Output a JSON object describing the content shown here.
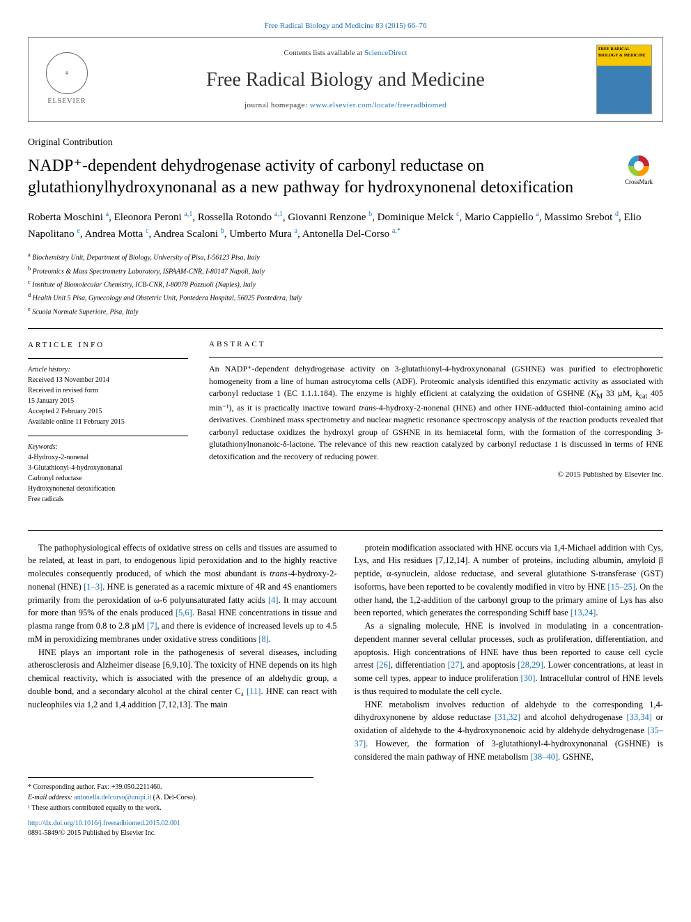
{
  "colors": {
    "link": "#1a6eb5",
    "text": "#000000",
    "border": "#888888"
  },
  "header": {
    "top_link": "Free Radical Biology and Medicine 83 (2015) 66–76",
    "contents_prefix": "Contents lists available at ",
    "contents_link": "ScienceDirect",
    "journal_name": "Free Radical Biology and Medicine",
    "homepage_prefix": "journal homepage: ",
    "homepage_url": "www.elsevier.com/locate/freeradbiomed",
    "elsevier": "ELSEVIER",
    "cover_text": "FREE RADICAL BIOLOGY & MEDICINE"
  },
  "article": {
    "type": "Original Contribution",
    "title": "NADP⁺-dependent dehydrogenase activity of carbonyl reductase on glutathionylhydroxynonanal as a new pathway for hydroxynonenal detoxification",
    "crossmark": "CrossMark"
  },
  "authors_html": "Roberta Moschini <sup>a</sup>, Eleonora Peroni <sup>a,1</sup>, Rossella Rotondo <sup>a,1</sup>, Giovanni Renzone <sup>b</sup>, Dominique Melck <sup>c</sup>, Mario Cappiello <sup>a</sup>, Massimo Srebot <sup>d</sup>, Elio Napolitano <sup>e</sup>, Andrea Motta <sup>c</sup>, Andrea Scaloni <sup>b</sup>, Umberto Mura <sup>a</sup>, Antonella Del-Corso <sup>a,*</sup>",
  "affiliations": [
    {
      "sup": "a",
      "text": "Biochemistry Unit, Department of Biology, University of Pisa, I-56123 Pisa, Italy"
    },
    {
      "sup": "b",
      "text": "Proteomics & Mass Spectrometry Laboratory, ISPAAM-CNR, I-80147 Napoli, Italy"
    },
    {
      "sup": "c",
      "text": "Institute of Biomolecular Chemistry, ICB-CNR, I-80078 Pozzuoli (Naples), Italy"
    },
    {
      "sup": "d",
      "text": "Health Unit 5 Pisa, Gynecology and Obstetric Unit, Pontedera Hospital, 56025 Pontedera, Italy"
    },
    {
      "sup": "e",
      "text": "Scuola Normale Superiore, Pisa, Italy"
    }
  ],
  "article_info": {
    "heading": "ARTICLE INFO",
    "history_label": "Article history:",
    "history": [
      "Received 13 November 2014",
      "Received in revised form",
      "15 January 2015",
      "Accepted 2 February 2015",
      "Available online 11 February 2015"
    ],
    "keywords_label": "Keywords:",
    "keywords": [
      "4-Hydroxy-2-nonenal",
      "3-Glutathionyl-4-hydroxynonanal",
      "Carbonyl reductase",
      "Hydroxynonenal detoxification",
      "Free radicals"
    ]
  },
  "abstract": {
    "heading": "ABSTRACT",
    "text": "An NADP⁺-dependent dehydrogenase activity on 3-glutathionyl-4-hydroxynonanal (GSHNE) was purified to electrophoretic homogeneity from a line of human astrocytoma cells (ADF). Proteomic analysis identified this enzymatic activity as associated with carbonyl reductase 1 (EC 1.1.1.184). The enzyme is highly efficient at catalyzing the oxidation of GSHNE (KM 33 µM, kcat 405 min⁻¹), as it is practically inactive toward trans-4-hydroxy-2-nonenal (HNE) and other HNE-adducted thiol-containing amino acid derivatives. Combined mass spectrometry and nuclear magnetic resonance spectroscopy analysis of the reaction products revealed that carbonyl reductase oxidizes the hydroxyl group of GSHNE in its hemiacetal form, with the formation of the corresponding 3-glutathionylnonanoic-δ-lactone. The relevance of this new reaction catalyzed by carbonyl reductase 1 is discussed in terms of HNE detoxification and the recovery of reducing power.",
    "copyright": "© 2015 Published by Elsevier Inc."
  },
  "body": {
    "col1": [
      "The pathophysiological effects of oxidative stress on cells and tissues are assumed to be related, at least in part, to endogenous lipid peroxidation and to the highly reactive molecules consequently produced, of which the most abundant is trans-4-hydroxy-2-nonenal (HNE) [1–3]. HNE is generated as a racemic mixture of 4R and 4S enantiomers primarily from the peroxidation of ω-6 polyunsaturated fatty acids [4]. It may account for more than 95% of the enals produced [5,6]. Basal HNE concentrations in tissue and plasma range from 0.8 to 2.8 µM [7], and there is evidence of increased levels up to 4.5 mM in peroxidizing membranes under oxidative stress conditions [8].",
      "HNE plays an important role in the pathogenesis of several diseases, including atherosclerosis and Alzheimer disease [6,9,10]. The toxicity of HNE depends on its high chemical reactivity, which is associated with the presence of an aldehydic group, a double bond, and a secondary alcohol at the chiral center C₄ [11]. HNE can react with nucleophiles via 1,2 and 1,4 addition [7,12,13]. The main"
    ],
    "col2": [
      "protein modification associated with HNE occurs via 1,4-Michael addition with Cys, Lys, and His residues [7,12,14]. A number of proteins, including albumin, amyloid β peptide, α-synuclein, aldose reductase, and several glutathione S-transferase (GST) isoforms, have been reported to be covalently modified in vitro by HNE [15–25]. On the other hand, the 1,2-addition of the carbonyl group to the primary amine of Lys has also been reported, which generates the corresponding Schiff base [13,24].",
      "As a signaling molecule, HNE is involved in modulating in a concentration-dependent manner several cellular processes, such as proliferation, differentiation, and apoptosis. High concentrations of HNE have thus been reported to cause cell cycle arrest [26], differentiation [27], and apoptosis [28,29]. Lower concentrations, at least in some cell types, appear to induce proliferation [30]. Intracellular control of HNE levels is thus required to modulate the cell cycle.",
      "HNE metabolism involves reduction of aldehyde to the corresponding 1,4-dihydroxynonene by aldose reductase [31,32] and alcohol dehydrogenase [33,34] or oxidation of aldehyde to the 4-hydroxynonenoic acid by aldehyde dehydrogenase [35–37]. However, the formation of 3-glutathionyl-4-hydroxynonanal (GSHNE) is considered the main pathway of HNE metabolism [38–40]. GSHNE,"
    ]
  },
  "footer": {
    "corresponding": "* Corresponding author. Fax: +39.050.2211460.",
    "email_label": "E-mail address: ",
    "email": "antonella.delcorso@unipi.it",
    "email_name": " (A. Del-Corso).",
    "equal": "¹ These authors contributed equally to the work.",
    "doi": "http://dx.doi.org/10.1016/j.freeradbiomed.2015.02.001",
    "issn": "0891-5849/© 2015 Published by Elsevier Inc."
  }
}
